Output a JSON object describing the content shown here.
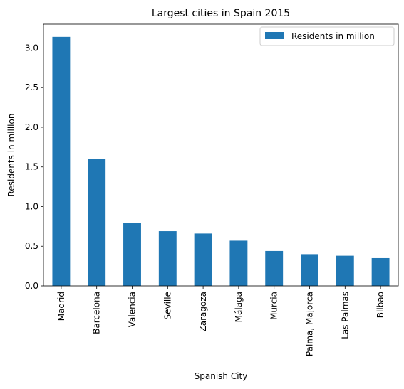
{
  "chart_data": {
    "type": "bar",
    "title": "Largest cities in Spain 2015",
    "xlabel": "Spanish City",
    "ylabel": "Residents in million",
    "categories": [
      "Madrid",
      "Barcelona",
      "Valencia",
      "Seville",
      "Zaragoza",
      "Málaga",
      "Murcia",
      "Palma, Majorca",
      "Las Palmas",
      "Bilbao"
    ],
    "series": [
      {
        "name": "Residents in million",
        "color": "#1f77b4",
        "values": [
          3.14,
          1.6,
          0.79,
          0.69,
          0.66,
          0.57,
          0.44,
          0.4,
          0.38,
          0.35
        ]
      }
    ],
    "ylim": [
      0,
      3.3
    ],
    "yticks": [
      "0.0",
      "0.5",
      "1.0",
      "1.5",
      "2.0",
      "2.5",
      "3.0"
    ],
    "legend": "top-right",
    "grid": false
  }
}
